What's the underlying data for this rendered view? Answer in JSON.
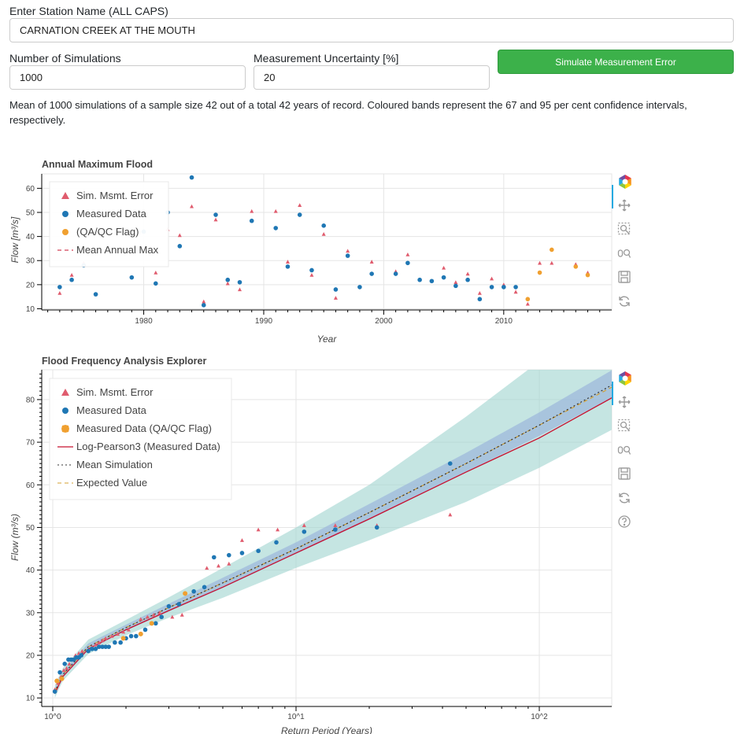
{
  "form": {
    "station_label": "Enter Station Name (ALL CAPS)",
    "station_value": "CARNATION CREEK AT THE MOUTH",
    "nsim_label": "Number of Simulations",
    "nsim_value": "1000",
    "uncert_label": "Measurement Uncertainty [%]",
    "uncert_value": "20",
    "button_label": "Simulate Measurement Error"
  },
  "description": "Mean of 1000 simulations of a sample size 42 out of a total 42 years of record. Coloured bands represent the 67 and 95 per cent confidence intervals, respectively.",
  "colors": {
    "sim": "#e05c6e",
    "measured": "#1f77b4",
    "qaqc": "#f0a030",
    "lp3": "#c8102e",
    "mean": "#333333",
    "expected": "#d4a030",
    "band95": "#9ed4cf",
    "band67": "#9bb6dc"
  },
  "toolbar_icons": [
    "bokeh-logo-icon",
    "pan-icon",
    "box-zoom-icon",
    "wheel-zoom-icon",
    "save-icon",
    "reset-icon",
    "help-icon"
  ],
  "chart_data": [
    {
      "type": "scatter",
      "title": "Annual Maximum Flood",
      "xlabel": "Year",
      "ylabel": "Flow [m³/s]",
      "xlim": [
        1971.5,
        2019
      ],
      "ylim": [
        9.5,
        66
      ],
      "xticks": [
        1980,
        1990,
        2000,
        2010
      ],
      "yticks": [
        10,
        20,
        30,
        40,
        50,
        60
      ],
      "grid": true,
      "legend_position": "top-left",
      "legend": [
        "Sim. Msmt. Error",
        "Measured Data",
        "(QA/QC Flag)",
        "Mean Annual Max"
      ],
      "series": [
        {
          "name": "Sim. Msmt. Error",
          "marker": "triangle",
          "x": [
            1973,
            1974,
            1975,
            1981,
            1982,
            1983,
            1984,
            1985,
            1986,
            1987,
            1988,
            1989,
            1991,
            1992,
            1993,
            1994,
            1995,
            1996,
            1997,
            1999,
            2001,
            2002,
            2005,
            2006,
            2007,
            2008,
            2009,
            2010,
            2011,
            2012,
            2013,
            2014,
            2016,
            2017
          ],
          "y": [
            16.5,
            24,
            29,
            25,
            43,
            40.5,
            52.5,
            13,
            47,
            20.5,
            18,
            50.5,
            50.5,
            29.5,
            53,
            24,
            41,
            14.5,
            34,
            29.5,
            25.5,
            32.5,
            27,
            21,
            24.5,
            16.5,
            22.5,
            20,
            17,
            12,
            29,
            29,
            28.5,
            25
          ]
        },
        {
          "name": "Measured Data",
          "marker": "circle",
          "x": [
            1973,
            1974,
            1975,
            1976,
            1979,
            1980,
            1981,
            1982,
            1983,
            1984,
            1985,
            1986,
            1987,
            1988,
            1989,
            1991,
            1992,
            1993,
            1994,
            1995,
            1996,
            1997,
            1998,
            1999,
            2001,
            2002,
            2003,
            2004,
            2005,
            2006,
            2007,
            2008,
            2009,
            2010,
            2011
          ],
          "y": [
            19,
            22,
            28,
            16,
            23,
            42,
            20.5,
            50,
            36,
            64.5,
            11.5,
            49,
            22,
            21,
            46.5,
            43.5,
            27.5,
            49,
            26,
            44.5,
            18,
            32,
            19,
            24.5,
            24.5,
            29,
            22,
            21.5,
            23,
            19.5,
            22,
            14,
            19,
            19,
            19
          ]
        },
        {
          "name": "(QA/QC Flag)",
          "marker": "circle",
          "x": [
            2012,
            2013,
            2014,
            2016,
            2017
          ],
          "y": [
            14,
            25,
            34.5,
            27.5,
            24
          ]
        }
      ]
    },
    {
      "type": "scatter",
      "title": "Flood Frequency Analysis Explorer",
      "xlabel": "Return Period (Years)",
      "ylabel": "Flow (m³/s)",
      "x_scale": "log",
      "xlim": [
        1,
        200
      ],
      "ylim": [
        8,
        87
      ],
      "xticks": [
        "10^0",
        "10^1",
        "10^2"
      ],
      "yticks": [
        10,
        20,
        30,
        40,
        50,
        60,
        70,
        80
      ],
      "grid": true,
      "legend_position": "top-left",
      "legend": [
        "Sim. Msmt. Error",
        "Measured Data",
        "Measured Data (QA/QC Flag)",
        "Log-Pearson3 (Measured Data)",
        "Mean Simulation",
        "Expected Value"
      ],
      "series": [
        {
          "name": "Sim. Msmt. Error",
          "marker": "triangle",
          "x": [
            1.02,
            1.05,
            1.08,
            1.11,
            1.14,
            1.17,
            1.2,
            1.24,
            1.28,
            1.32,
            1.45,
            1.5,
            1.55,
            1.6,
            1.65,
            1.75,
            1.85,
            1.95,
            2.05,
            2.3,
            2.45,
            2.6,
            2.75,
            3.1,
            3.4,
            4.3,
            4.8,
            5.3,
            6,
            7,
            8.4,
            10.8,
            14.5,
            21.5,
            43
          ],
          "y": [
            12,
            13.5,
            15,
            16.5,
            17,
            18,
            19,
            20,
            20.5,
            21,
            22,
            22.5,
            23,
            23.5,
            24,
            24.5,
            25,
            25.5,
            26,
            28.5,
            29,
            29.5,
            30,
            29,
            29.5,
            40.5,
            41,
            41.5,
            47,
            49.5,
            49.5,
            50.5,
            50.5,
            50.5,
            53
          ]
        },
        {
          "name": "Measured Data",
          "marker": "circle",
          "x": [
            1.02,
            1.07,
            1.12,
            1.16,
            1.19,
            1.22,
            1.25,
            1.28,
            1.31,
            1.4,
            1.45,
            1.5,
            1.55,
            1.6,
            1.65,
            1.7,
            1.8,
            1.9,
            2,
            2.1,
            2.2,
            2.4,
            2.65,
            2.8,
            3,
            3.3,
            3.8,
            4.2,
            4.6,
            5.3,
            6,
            7,
            8.3,
            10.8,
            14.5,
            21.5,
            43
          ],
          "y": [
            11.5,
            16,
            18,
            19,
            19,
            19,
            19.5,
            19.5,
            20,
            21,
            21.5,
            21.5,
            22,
            22,
            22,
            22,
            23,
            23,
            24,
            24.5,
            24.5,
            26,
            27.5,
            29,
            31.5,
            32,
            35,
            36,
            43,
            43.5,
            44,
            44.5,
            46.5,
            49,
            49.5,
            50,
            65
          ]
        },
        {
          "name": "Measured Data (QA/QC Flag)",
          "marker": "circle",
          "x": [
            1.04,
            1.09,
            1.95,
            2.3,
            2.55,
            3.5
          ],
          "y": [
            14,
            14.5,
            24,
            25,
            27.5,
            34.5
          ]
        }
      ],
      "curves": {
        "x": [
          1.02,
          1.1,
          1.4,
          2,
          3,
          5,
          10,
          20,
          50,
          100,
          200
        ],
        "lp3": [
          11,
          15,
          21.5,
          26,
          30.5,
          36,
          44,
          52,
          63,
          71,
          80.5
        ],
        "mean": [
          11.5,
          15.5,
          22,
          26.5,
          31.2,
          37,
          45,
          53.5,
          65,
          74,
          83.5
        ],
        "expected": [
          11.5,
          15.5,
          22,
          26.5,
          31.2,
          37,
          45,
          53.5,
          65,
          74,
          83
        ],
        "ci67": {
          "lower": [
            10.8,
            14.8,
            21.2,
            25.8,
            30.3,
            35.8,
            43.8,
            51.8,
            63,
            71.5,
            80.5
          ],
          "upper": [
            12.2,
            16.2,
            22.8,
            27.2,
            32.1,
            38.2,
            46.5,
            55.5,
            67.5,
            77,
            87
          ]
        },
        "ci95": {
          "lower": [
            10,
            14,
            20.3,
            24.7,
            28.8,
            33.5,
            40.5,
            47,
            56,
            64,
            73
          ],
          "upper": [
            13,
            17,
            23.7,
            28.3,
            33.6,
            40.5,
            50,
            60,
            76,
            89,
            104
          ]
        }
      }
    }
  ]
}
